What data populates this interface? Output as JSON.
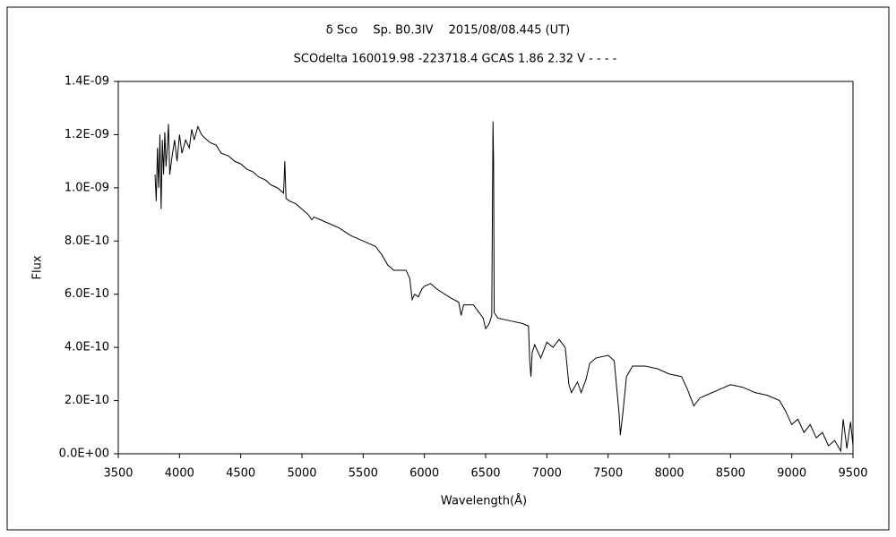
{
  "chart_data": {
    "type": "line",
    "title": "δ Sco　 Sp. B0.3IV　 2015/08/08.445 (UT)",
    "subtitle": "SCOdelta 160019.98 -223718.4 GCAS 1.86 2.32 V - - - -",
    "x_label": "Wavelength(Å)",
    "y_label": "Flux",
    "xlim": [
      3500,
      9500
    ],
    "xticks": [
      3500,
      4000,
      4500,
      5000,
      5500,
      6000,
      6500,
      7000,
      7500,
      8000,
      8500,
      9000,
      9500
    ],
    "ylim": [
      0,
      1.4e-09
    ],
    "yticks": [
      {
        "value": 0,
        "label": "0.0E+00"
      },
      {
        "value": 2e-10,
        "label": "2.0E-10"
      },
      {
        "value": 4e-10,
        "label": "4.0E-10"
      },
      {
        "value": 6e-10,
        "label": "6.0E-10"
      },
      {
        "value": 8e-10,
        "label": "8.0E-10"
      },
      {
        "value": 1e-09,
        "label": "1.0E-09"
      },
      {
        "value": 1.2e-09,
        "label": "1.2E-09"
      },
      {
        "value": 1.4e-09,
        "label": "1.4E-09"
      }
    ],
    "color": "#000000",
    "x": [
      3800,
      3810,
      3820,
      3830,
      3840,
      3850,
      3860,
      3870,
      3880,
      3890,
      3900,
      3910,
      3920,
      3940,
      3960,
      3980,
      4000,
      4020,
      4050,
      4080,
      4100,
      4120,
      4150,
      4180,
      4200,
      4250,
      4300,
      4340,
      4400,
      4450,
      4500,
      4550,
      4600,
      4650,
      4700,
      4750,
      4800,
      4850,
      4860,
      4870,
      4900,
      4950,
      5000,
      5050,
      5080,
      5100,
      5150,
      5200,
      5300,
      5400,
      5500,
      5600,
      5650,
      5700,
      5750,
      5850,
      5880,
      5900,
      5920,
      5950,
      5980,
      6000,
      6050,
      6100,
      6200,
      6280,
      6300,
      6320,
      6400,
      6480,
      6500,
      6530,
      6550,
      6560,
      6565,
      6570,
      6600,
      6700,
      6800,
      6850,
      6860,
      6870,
      6880,
      6900,
      6950,
      7000,
      7050,
      7100,
      7150,
      7180,
      7200,
      7250,
      7280,
      7320,
      7350,
      7400,
      7500,
      7550,
      7590,
      7600,
      7620,
      7650,
      7700,
      7800,
      7900,
      8000,
      8100,
      8150,
      8200,
      8250,
      8300,
      8400,
      8500,
      8600,
      8700,
      8800,
      8900,
      8950,
      9000,
      9050,
      9100,
      9150,
      9200,
      9250,
      9300,
      9350,
      9400,
      9420,
      9450,
      9480,
      9500
    ],
    "values": [
      1.05e-09,
      9.5e-10,
      1.15e-09,
      1e-09,
      1.2e-09,
      9.2e-10,
      1.18e-09,
      1.05e-09,
      1.21e-09,
      1.08e-09,
      1.15e-09,
      1.24e-09,
      1.05e-09,
      1.12e-09,
      1.18e-09,
      1.1e-09,
      1.2e-09,
      1.13e-09,
      1.18e-09,
      1.15e-09,
      1.22e-09,
      1.18e-09,
      1.23e-09,
      1.2e-09,
      1.19e-09,
      1.17e-09,
      1.16e-09,
      1.13e-09,
      1.12e-09,
      1.1e-09,
      1.09e-09,
      1.07e-09,
      1.06e-09,
      1.04e-09,
      1.03e-09,
      1.01e-09,
      1e-09,
      9.8e-10,
      1.1e-09,
      9.6e-10,
      9.5e-10,
      9.4e-10,
      9.2e-10,
      9e-10,
      8.8e-10,
      8.9e-10,
      8.8e-10,
      8.7e-10,
      8.5e-10,
      8.2e-10,
      8e-10,
      7.8e-10,
      7.5e-10,
      7.1e-10,
      6.9e-10,
      6.9e-10,
      6.6e-10,
      5.8e-10,
      6e-10,
      5.9e-10,
      6.2e-10,
      6.3e-10,
      6.4e-10,
      6.2e-10,
      5.9e-10,
      5.7e-10,
      5.2e-10,
      5.6e-10,
      5.6e-10,
      5.1e-10,
      4.7e-10,
      4.9e-10,
      5.2e-10,
      1.25e-09,
      1.1e-09,
      5.3e-10,
      5.1e-10,
      5e-10,
      4.9e-10,
      4.8e-10,
      3.5e-10,
      2.9e-10,
      3.8e-10,
      4.1e-10,
      3.6e-10,
      4.2e-10,
      4e-10,
      4.3e-10,
      4e-10,
      2.6e-10,
      2.3e-10,
      2.7e-10,
      2.3e-10,
      2.8e-10,
      3.4e-10,
      3.6e-10,
      3.7e-10,
      3.5e-10,
      1.5e-10,
      7e-11,
      1.5e-10,
      2.9e-10,
      3.3e-10,
      3.3e-10,
      3.2e-10,
      3e-10,
      2.9e-10,
      2.4e-10,
      1.8e-10,
      2.1e-10,
      2.2e-10,
      2.4e-10,
      2.6e-10,
      2.5e-10,
      2.3e-10,
      2.2e-10,
      2e-10,
      1.6e-10,
      1.1e-10,
      1.3e-10,
      8e-11,
      1.1e-10,
      6e-11,
      8e-11,
      3e-11,
      5e-11,
      1e-11,
      1.3e-10,
      2e-11,
      1.2e-10,
      3e-11
    ]
  }
}
